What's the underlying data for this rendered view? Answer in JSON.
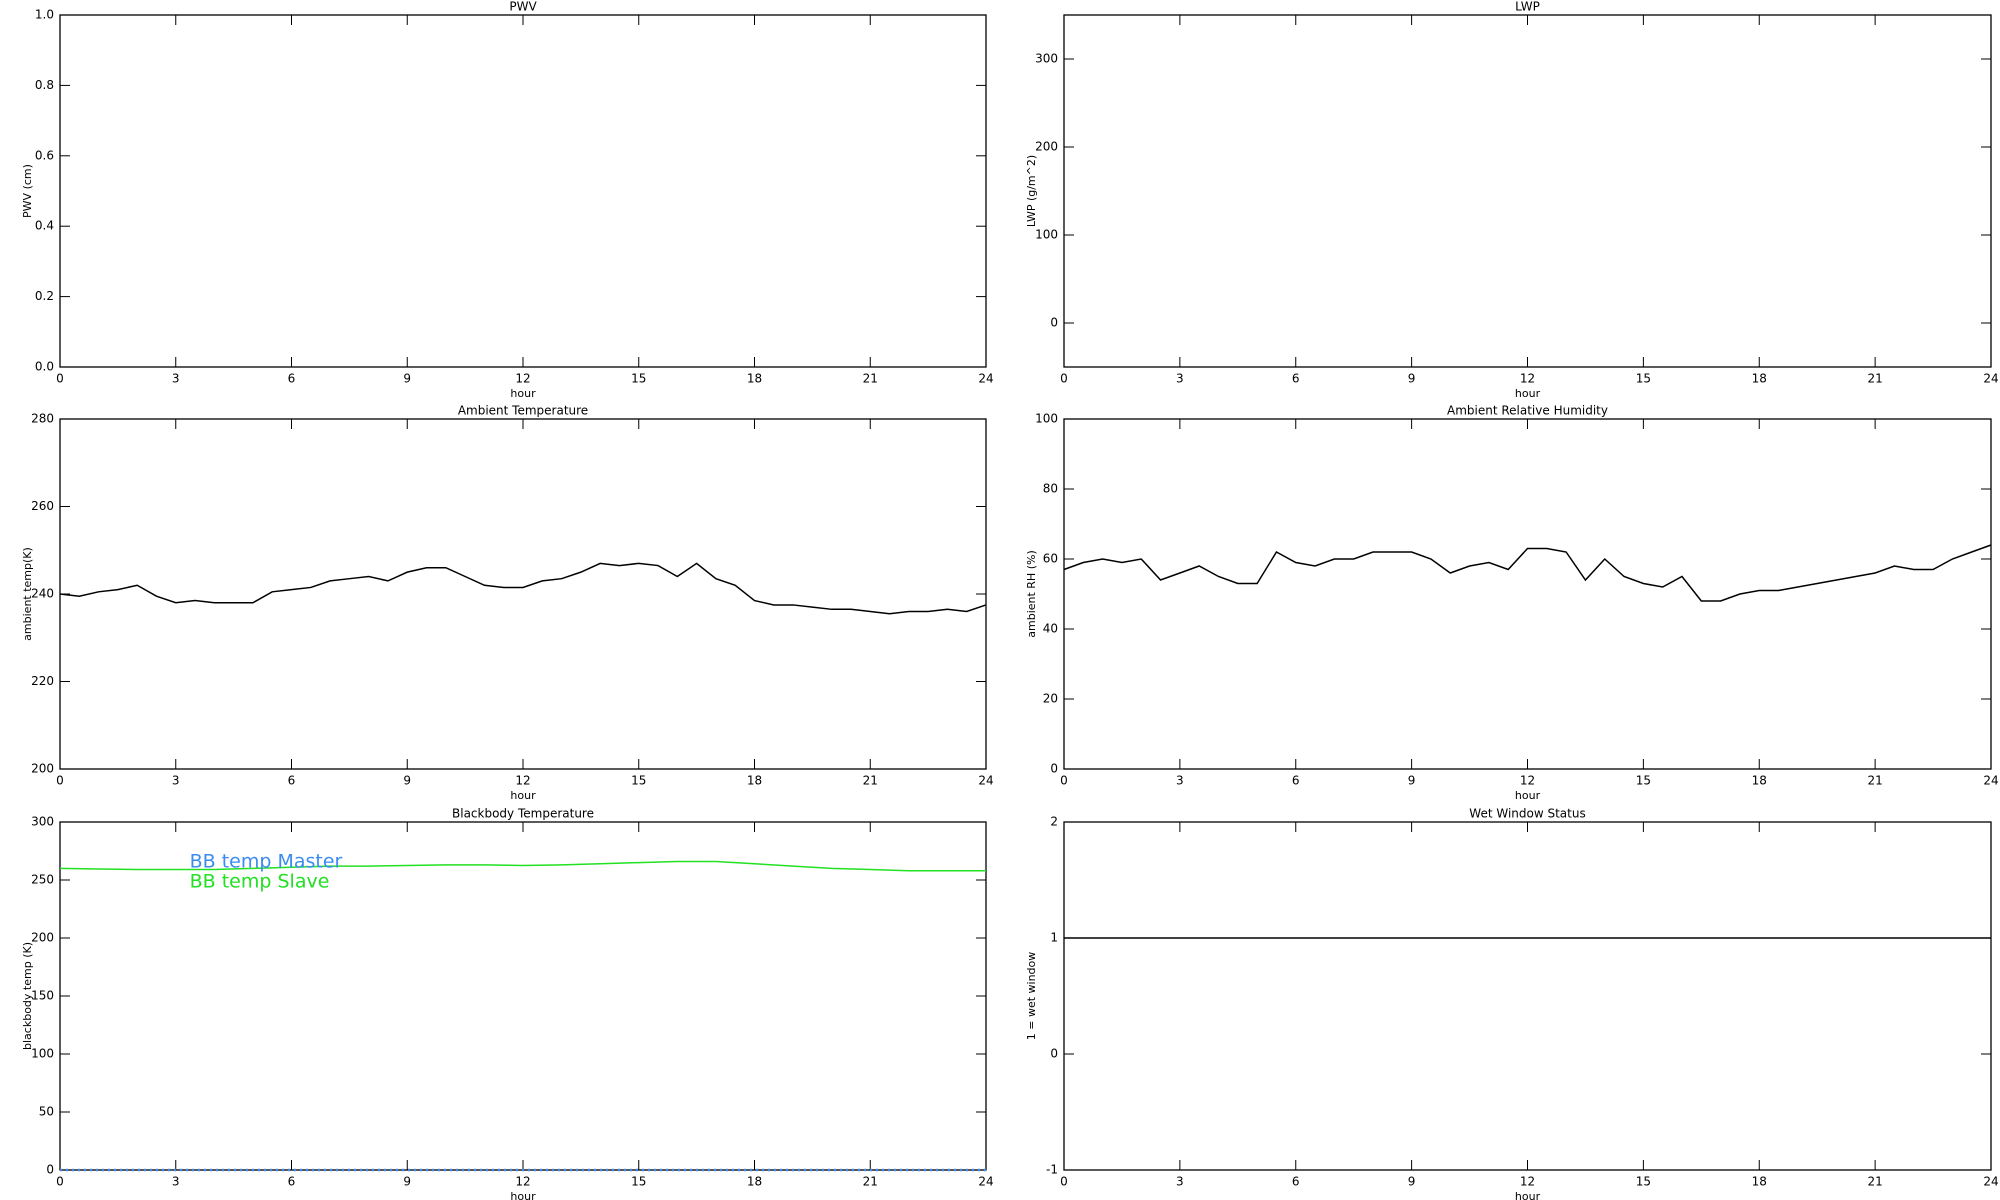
{
  "chart_data": [
    {
      "type": "line",
      "title": "PWV",
      "ylabel": "PWV (cm)",
      "xlabel": "hour",
      "xlim": [
        0,
        24
      ],
      "xticks": [
        0,
        3,
        6,
        9,
        12,
        15,
        18,
        21,
        24
      ],
      "ylim": [
        0,
        1
      ],
      "yticks": [
        {
          "value": 0,
          "label": "0.0"
        },
        0.2,
        0.4,
        0.6,
        0.8,
        {
          "value": 1,
          "label": "1.0"
        }
      ]
    },
    {
      "type": "line",
      "title": "LWP",
      "ylabel": "LWP (g/m^2)",
      "xlabel": "hour",
      "xlim": [
        0,
        24
      ],
      "xticks": [
        0,
        3,
        6,
        9,
        12,
        15,
        18,
        21,
        24
      ],
      "ylim": [
        -50,
        350
      ],
      "yticks": [
        0,
        100,
        200,
        300
      ]
    },
    {
      "type": "line",
      "title": "Ambient Temperature",
      "ylabel": "ambient temp(K)",
      "xlabel": "hour",
      "xlim": [
        0,
        24
      ],
      "xticks": [
        0,
        3,
        6,
        9,
        12,
        15,
        18,
        21,
        24
      ],
      "ylim": [
        200,
        280
      ],
      "yticks": [
        200,
        220,
        240,
        260,
        280
      ],
      "x": [
        0,
        0.5,
        1,
        1.5,
        2,
        2.5,
        3,
        3.5,
        4,
        4.5,
        5,
        5.5,
        6,
        6.5,
        7,
        7.5,
        8,
        8.5,
        9,
        9.5,
        10,
        10.5,
        11,
        11.5,
        12,
        12.5,
        13,
        13.5,
        14,
        14.5,
        15,
        15.5,
        16,
        16.5,
        17,
        17.5,
        18,
        18.5,
        19,
        19.5,
        20,
        20.5,
        21,
        21.5,
        22,
        22.5,
        23,
        23.5,
        24
      ],
      "series": [
        {
          "color": "#000000",
          "values": [
            240,
            239.5,
            240.5,
            241,
            242,
            239.5,
            238,
            238.5,
            238,
            238,
            238,
            240.5,
            241,
            241.5,
            243,
            243.5,
            244,
            243,
            245,
            246,
            246,
            244,
            242,
            241.5,
            241.5,
            243,
            243.5,
            245,
            247,
            246.5,
            247,
            246.5,
            244,
            247,
            243.5,
            242,
            238.5,
            237.5,
            237.5,
            237,
            236.5,
            236.5,
            236,
            235.5,
            236,
            236,
            236.5,
            236,
            237.5
          ]
        }
      ]
    },
    {
      "type": "line",
      "title": "Ambient Relative Humidity",
      "ylabel": "ambient RH (%)",
      "xlabel": "hour",
      "xlim": [
        0,
        24
      ],
      "xticks": [
        0,
        3,
        6,
        9,
        12,
        15,
        18,
        21,
        24
      ],
      "ylim": [
        0,
        100
      ],
      "yticks": [
        0,
        20,
        40,
        60,
        80,
        100
      ],
      "x": [
        0,
        0.5,
        1,
        1.5,
        2,
        2.5,
        3,
        3.5,
        4,
        4.5,
        5,
        5.5,
        6,
        6.5,
        7,
        7.5,
        8,
        8.5,
        9,
        9.5,
        10,
        10.5,
        11,
        11.5,
        12,
        12.5,
        13,
        13.5,
        14,
        14.5,
        15,
        15.5,
        16,
        16.5,
        17,
        17.5,
        18,
        18.5,
        19,
        19.5,
        20,
        20.5,
        21,
        21.5,
        22,
        22.5,
        23,
        23.5,
        24
      ],
      "series": [
        {
          "color": "#000000",
          "values": [
            57,
            59,
            60,
            59,
            60,
            54,
            56,
            58,
            55,
            53,
            53,
            62,
            59,
            58,
            60,
            60,
            62,
            62,
            62,
            60,
            56,
            58,
            59,
            57,
            63,
            63,
            62,
            54,
            60,
            55,
            53,
            52,
            55,
            48,
            48,
            50,
            51,
            51,
            52,
            53,
            54,
            55,
            56,
            58,
            57,
            57,
            60,
            62,
            64
          ]
        }
      ]
    },
    {
      "type": "line",
      "title": "Blackbody Temperature",
      "ylabel": "blackbody temp (K)",
      "xlabel": "hour",
      "xlim": [
        0,
        24
      ],
      "xticks": [
        0,
        3,
        6,
        9,
        12,
        15,
        18,
        21,
        24
      ],
      "ylim": [
        0,
        300
      ],
      "yticks": [
        0,
        50,
        100,
        150,
        200,
        250,
        300
      ],
      "legend": "upper left",
      "x": [
        0,
        1,
        2,
        3,
        4,
        5,
        6,
        7,
        8,
        9,
        10,
        11,
        12,
        13,
        14,
        15,
        16,
        17,
        18,
        19,
        20,
        21,
        22,
        23,
        24
      ],
      "series": [
        {
          "name": "BB temp Master",
          "color": "#3a8cf0",
          "linestyle": "dotted",
          "values": [
            0,
            0,
            0,
            0,
            0,
            0,
            0,
            0,
            0,
            0,
            0,
            0,
            0,
            0,
            0,
            0,
            0,
            0,
            0,
            0,
            0,
            0,
            0,
            0,
            0
          ]
        },
        {
          "name": "BB temp Slave",
          "color": "#22e022",
          "values": [
            260,
            259.5,
            259,
            259,
            259,
            260,
            261,
            262,
            262,
            262.5,
            263,
            263,
            262.5,
            263,
            264,
            265,
            266,
            266,
            264,
            262,
            260,
            259,
            258,
            258,
            258
          ]
        }
      ]
    },
    {
      "type": "line",
      "title": "Wet Window Status",
      "ylabel": "1 = wet window",
      "xlabel": "hour",
      "xlim": [
        0,
        24
      ],
      "xticks": [
        0,
        3,
        6,
        9,
        12,
        15,
        18,
        21,
        24
      ],
      "ylim": [
        -1,
        2
      ],
      "yticks": [
        -1,
        0,
        1,
        2
      ],
      "x": [
        0,
        24
      ],
      "series": [
        {
          "color": "#000000",
          "values": [
            1,
            1
          ]
        }
      ]
    }
  ]
}
